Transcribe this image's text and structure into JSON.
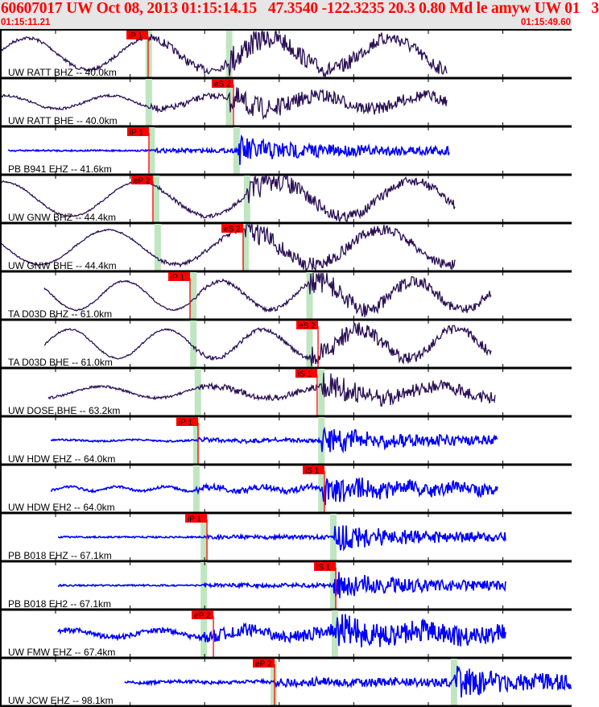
{
  "header": {
    "title": "60607017 UW Oct 08, 2013 01:15:14.15   47.3540 -122.3235 20.3 0.80 Md le amyw UW 01   3",
    "start_time": "01:15:11.21",
    "end_time": "01:15:49.60"
  },
  "chart_data": {
    "type": "line",
    "description_type": "seismogram record section",
    "x_axis_units": "seconds after 01:15:00",
    "xlim": [
      11.21,
      49.6
    ],
    "colors": {
      "broadband": "#2b1055",
      "short_period": "#0000ff",
      "pick": "#ff0000",
      "predicted_window": "#bfe6c0"
    },
    "traces": [
      {
        "label": "UW RATT BHZ -- 40.0km",
        "pick": {
          "phase": "iP 1",
          "time": 21.16
        },
        "pred_p": 21.2,
        "pred_s": 26.6
      },
      {
        "label": "UW RATT BHE -- 40.0km",
        "pick": {
          "phase": "eS 2",
          "time": 26.89
        },
        "pred_p": 21.2,
        "pred_s": 26.6
      },
      {
        "label": "PB B941 EHZ -- 41.6km",
        "pick": {
          "phase": "iP 1",
          "time": 21.21
        },
        "pred_p": 21.4,
        "pred_s": 27.1
      },
      {
        "label": "UW GNW BHZ -- 44.4km",
        "pick": {
          "phase": "eP 2",
          "time": 21.48
        },
        "pred_p": 21.7,
        "pred_s": 27.8
      },
      {
        "label": "UW GNW BHE -- 44.4km",
        "pick": {
          "phase": "eS 2",
          "time": 27.54
        },
        "pred_p": 21.8,
        "pred_s": 27.7
      },
      {
        "label": "TA D03D BHZ -- 61.0km",
        "pick": {
          "phase": "iP 1",
          "time": 23.97
        },
        "pred_p": 24.2,
        "pred_s": 32.0
      },
      {
        "label": "TA D03D BHE -- 61.0km",
        "pick": {
          "phase": "eS 2",
          "time": 32.57
        },
        "pred_p": 24.2,
        "pred_s": 32.0
      },
      {
        "label": "UW DOSE BHE -- 63.2km",
        "pick": {
          "phase": "iS 1",
          "time": 32.51
        },
        "pred_p": 24.5,
        "pred_s": 32.8
      },
      {
        "label": "UW HDW EHZ -- 64.0km",
        "pick": {
          "phase": "iP 1",
          "time": 24.51
        },
        "pred_p": 24.4,
        "pred_s": 32.8
      },
      {
        "label": "UW HDW EH2 -- 64.0km",
        "pick": {
          "phase": "iS 1",
          "time": 33.0
        },
        "pred_p": 24.4,
        "pred_s": 32.8
      },
      {
        "label": "PB B018 EHZ -- 67.1km",
        "pick": {
          "phase": "iP 1",
          "time": 25.11
        },
        "pred_p": 24.9,
        "pred_s": 33.6
      },
      {
        "label": "PB B018 EH2 -- 67.1km",
        "pick": {
          "phase": "iS 1",
          "time": 33.76
        },
        "pred_p": 24.9,
        "pred_s": 33.6
      },
      {
        "label": "UW FMW EHZ -- 67.4km",
        "pick": {
          "phase": "eP 2",
          "time": 25.54
        },
        "pred_p": 24.9,
        "pred_s": 33.7
      },
      {
        "label": "UW JCW EHZ -- 98.1km",
        "pick": {
          "phase": "eP 2",
          "time": 29.65
        },
        "pred_p": 29.6,
        "pred_s": 41.7
      }
    ]
  }
}
